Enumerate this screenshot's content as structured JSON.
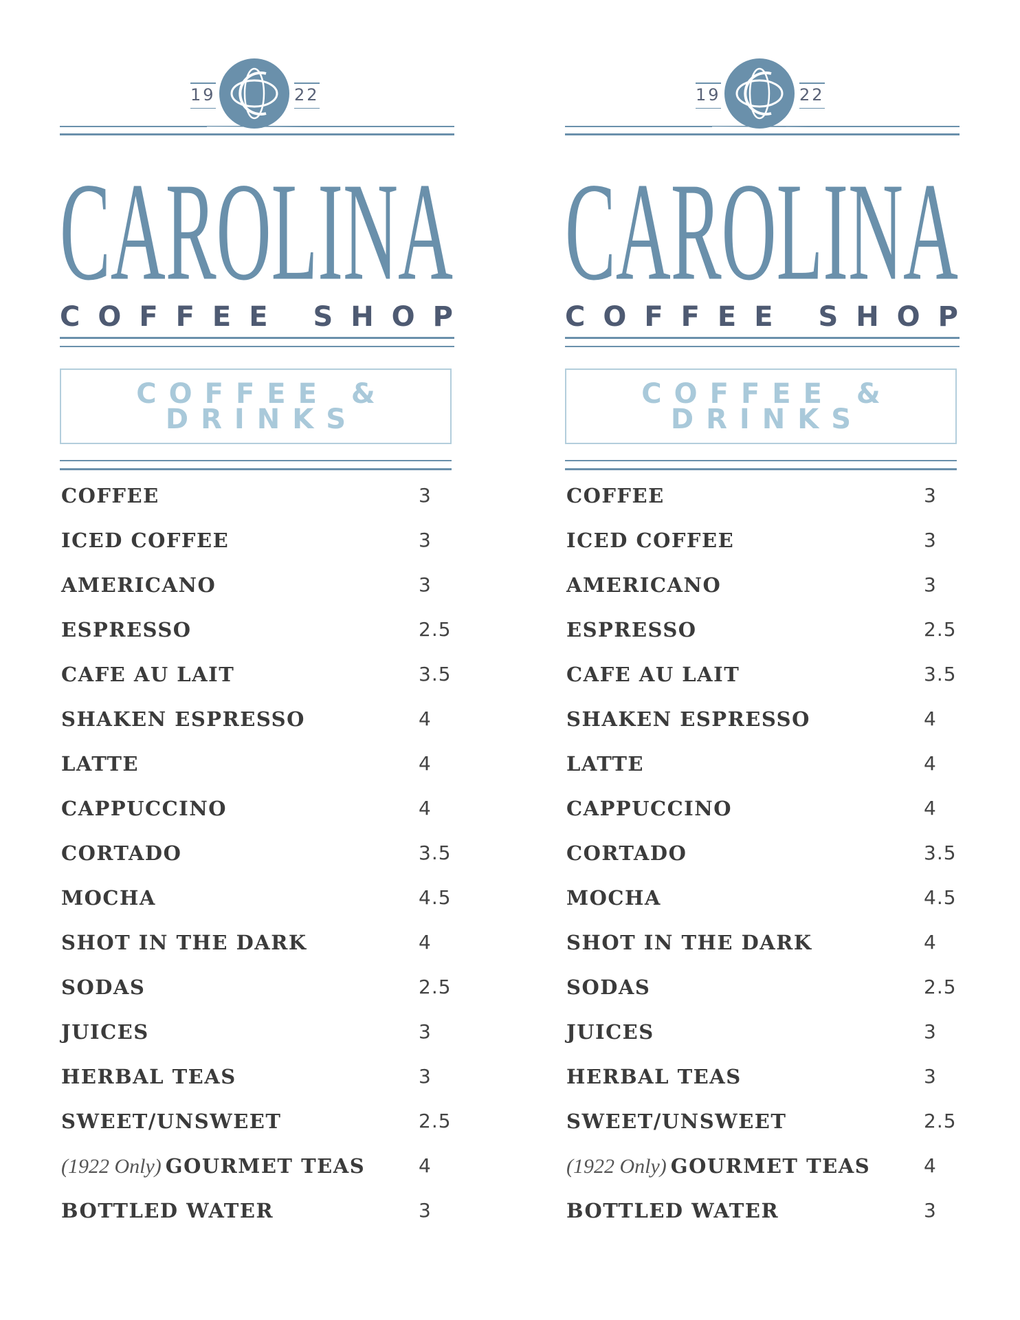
{
  "brand": {
    "logo_monogram": "CS",
    "year_left": "19",
    "year_right": "22",
    "name": "CAROLINA",
    "subtitle": "COFFEE SHOP",
    "colors": {
      "primary": "#6a90ab",
      "dark": "#4e5a72",
      "light": "#a9c9da",
      "text": "#3b3b3b"
    }
  },
  "section": {
    "title_line1": "COFFEE &",
    "title_line2": "DRINKS"
  },
  "menu": [
    {
      "name": "COFFEE",
      "price": "3"
    },
    {
      "name": "ICED COFFEE",
      "price": "3"
    },
    {
      "name": "AMERICANO",
      "price": "3"
    },
    {
      "name": "ESPRESSO",
      "price": "2.5"
    },
    {
      "name": "CAFE AU LAIT",
      "price": "3.5"
    },
    {
      "name": "SHAKEN ESPRESSO",
      "price": "4"
    },
    {
      "name": "LATTE",
      "price": "4"
    },
    {
      "name": "CAPPUCCINO",
      "price": "4"
    },
    {
      "name": "CORTADO",
      "price": "3.5"
    },
    {
      "name": "MOCHA",
      "price": "4.5"
    },
    {
      "name": "SHOT IN THE DARK",
      "price": "4"
    },
    {
      "name": "SODAS",
      "price": "2.5"
    },
    {
      "name": "JUICES",
      "price": "3"
    },
    {
      "name": "HERBAL TEAS",
      "price": "3"
    },
    {
      "name": "SWEET/UNSWEET",
      "price": "2.5"
    },
    {
      "name": "GOURMET TEAS",
      "note": "(1922 Only)",
      "price": "4"
    },
    {
      "name": "BOTTLED WATER",
      "price": "3"
    }
  ]
}
